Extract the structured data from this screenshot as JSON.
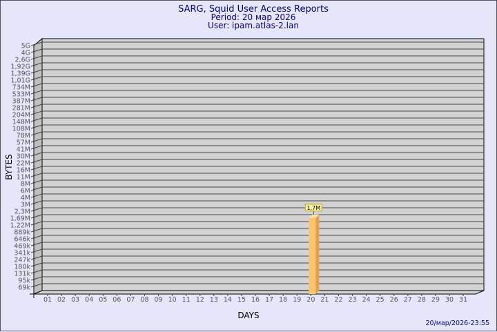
{
  "header": {
    "title": "SARG, Squid User Access Reports",
    "period": "Period: 20 мар 2026",
    "user": "User: ipam.atlas-2.lan"
  },
  "footer": {
    "timestamp": "20/мар/2026-23:55"
  },
  "colors": {
    "background": "#e6e6fa",
    "plot": "#d3d3d3",
    "title": "#00008b",
    "bar": "#fcc36a",
    "bar_side": "#e0a04e",
    "bar_top": "#ffe39c"
  },
  "chart_data": {
    "type": "bar",
    "xlabel": "DAYS",
    "ylabel": "BYTES",
    "grid": true,
    "y_scale": "log",
    "y_tick_labels": [
      "5G",
      "4G",
      "2,6G",
      "1,92G",
      "1,39G",
      "1,01G",
      "734M",
      "533M",
      "387M",
      "281M",
      "204M",
      "148M",
      "108M",
      "78M",
      "57M",
      "41M",
      "30M",
      "22M",
      "16M",
      "11M",
      "8M",
      "6M",
      "4M",
      "3M",
      "2,3M",
      "1,69M",
      "1,22M",
      "889k",
      "646k",
      "469k",
      "341k",
      "247k",
      "180k",
      "131k",
      "95k",
      "69k"
    ],
    "y_tick_values": [
      5000000000,
      4000000000,
      2600000000,
      1920000000,
      1390000000,
      1010000000,
      734000000,
      533000000,
      387000000,
      281000000,
      204000000,
      148000000,
      108000000,
      78000000,
      57000000,
      41000000,
      30000000,
      22000000,
      16000000,
      11000000,
      8000000,
      6000000,
      4000000,
      3000000,
      2300000,
      1690000,
      1220000,
      889000,
      646000,
      469000,
      341000,
      247000,
      180000,
      131000,
      95000,
      69000
    ],
    "categories": [
      "01",
      "02",
      "03",
      "04",
      "05",
      "06",
      "07",
      "08",
      "09",
      "10",
      "11",
      "12",
      "13",
      "14",
      "15",
      "16",
      "17",
      "18",
      "19",
      "20",
      "21",
      "22",
      "23",
      "24",
      "25",
      "26",
      "27",
      "28",
      "29",
      "30",
      "31"
    ],
    "bars": [
      {
        "day": "20",
        "value": 1700000,
        "label": "1,7M"
      }
    ]
  }
}
